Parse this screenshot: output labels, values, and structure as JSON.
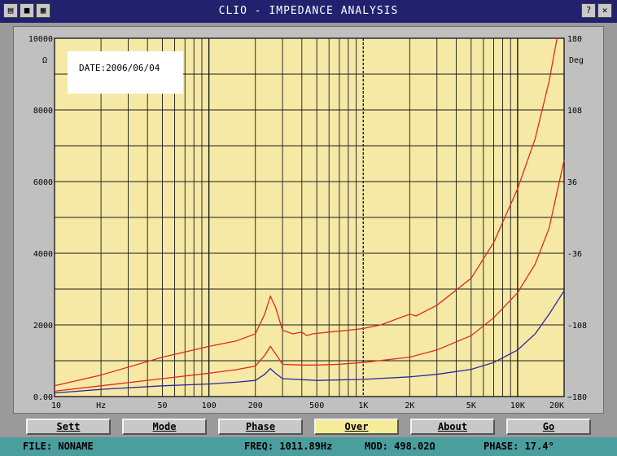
{
  "window": {
    "title": "CLIO - IMPEDANCE ANALYSIS",
    "help_label": "?",
    "close_label": "✕"
  },
  "date_label": "DATE:2006/06/04",
  "chart_data": {
    "type": "line",
    "title": "",
    "xscale": "log",
    "xlim": [
      10,
      20000
    ],
    "ylim": [
      0,
      10000
    ],
    "ylim_right": [
      -180,
      180
    ],
    "ylabel": "Ω",
    "ylabel_right": "Deg",
    "xlabel_unit": "Hz",
    "grid": true,
    "x_ticks": [
      {
        "v": 10,
        "t": "10"
      },
      {
        "v": 50,
        "t": "50"
      },
      {
        "v": 100,
        "t": "100"
      },
      {
        "v": 200,
        "t": "200"
      },
      {
        "v": 500,
        "t": "500"
      },
      {
        "v": 1000,
        "t": "1K"
      },
      {
        "v": 2000,
        "t": "2K"
      },
      {
        "v": 5000,
        "t": "5K"
      },
      {
        "v": 10000,
        "t": "10K"
      },
      {
        "v": 20000,
        "t": "20K"
      }
    ],
    "y_ticks": [
      {
        "v": 0,
        "t": "0.00"
      },
      {
        "v": 2000,
        "t": "2000"
      },
      {
        "v": 4000,
        "t": "4000"
      },
      {
        "v": 6000,
        "t": "6000"
      },
      {
        "v": 8000,
        "t": "8000"
      },
      {
        "v": 10000,
        "t": "10000"
      }
    ],
    "y_ticks_right": [
      {
        "v": 180,
        "t": "180"
      },
      {
        "v": 108,
        "t": "108"
      },
      {
        "v": 36,
        "t": "36"
      },
      {
        "v": -36,
        "t": "-36"
      },
      {
        "v": -108,
        "t": "-108"
      },
      {
        "v": -180,
        "t": "−180"
      }
    ],
    "series": [
      {
        "color": "#e0281e",
        "x": [
          10,
          20,
          50,
          100,
          150,
          200,
          230,
          250,
          270,
          300,
          350,
          400,
          430,
          470,
          600,
          800,
          1000,
          1300,
          1500,
          2000,
          2200,
          3000,
          5000,
          7000,
          10000,
          13000,
          16000,
          18000
        ],
        "y": [
          300,
          600,
          1100,
          1400,
          1550,
          1750,
          2300,
          2800,
          2500,
          1850,
          1750,
          1800,
          1700,
          1750,
          1800,
          1850,
          1900,
          2000,
          2100,
          2300,
          2250,
          2550,
          3300,
          4300,
          5800,
          7200,
          8800,
          10000
        ]
      },
      {
        "color": "#e0281e",
        "x": [
          10,
          20,
          50,
          100,
          150,
          200,
          230,
          250,
          270,
          300,
          400,
          500,
          700,
          1000,
          2000,
          3000,
          5000,
          7000,
          10000,
          13000,
          16000,
          20000
        ],
        "y": [
          150,
          300,
          500,
          650,
          750,
          850,
          1150,
          1400,
          1200,
          900,
          880,
          880,
          900,
          950,
          1100,
          1300,
          1700,
          2200,
          2900,
          3700,
          4700,
          6600
        ]
      },
      {
        "color": "#2828a0",
        "x": [
          10,
          20,
          50,
          100,
          150,
          200,
          230,
          250,
          270,
          300,
          500,
          1000,
          2000,
          3000,
          5000,
          7000,
          10000,
          13000,
          16000,
          20000
        ],
        "y": [
          100,
          200,
          300,
          350,
          400,
          450,
          620,
          780,
          650,
          500,
          450,
          480,
          550,
          620,
          760,
          950,
          1300,
          1750,
          2300,
          2950
        ]
      }
    ]
  },
  "buttons": [
    {
      "label": "Sett",
      "name": "sett-button",
      "active": false
    },
    {
      "label": "Mode",
      "name": "mode-button",
      "active": false
    },
    {
      "label": "Phase",
      "name": "phase-button",
      "active": false
    },
    {
      "label": "Over",
      "name": "over-button",
      "active": true
    },
    {
      "label": "About",
      "name": "about-button",
      "active": false
    },
    {
      "label": "Go",
      "name": "go-button",
      "active": false
    }
  ],
  "status": {
    "file": "FILE: NONAME",
    "freq": "FREQ: 1011.89Hz",
    "mod": "MOD: 498.02Ω",
    "phase": "PHASE: 17.4°"
  },
  "colors": {
    "plot_bg": "#f6e9a6",
    "grid": "#1a1a1a",
    "title_bar": "#21216e",
    "status_bar": "#4a9e9e",
    "active_button": "#f5ec9a"
  }
}
